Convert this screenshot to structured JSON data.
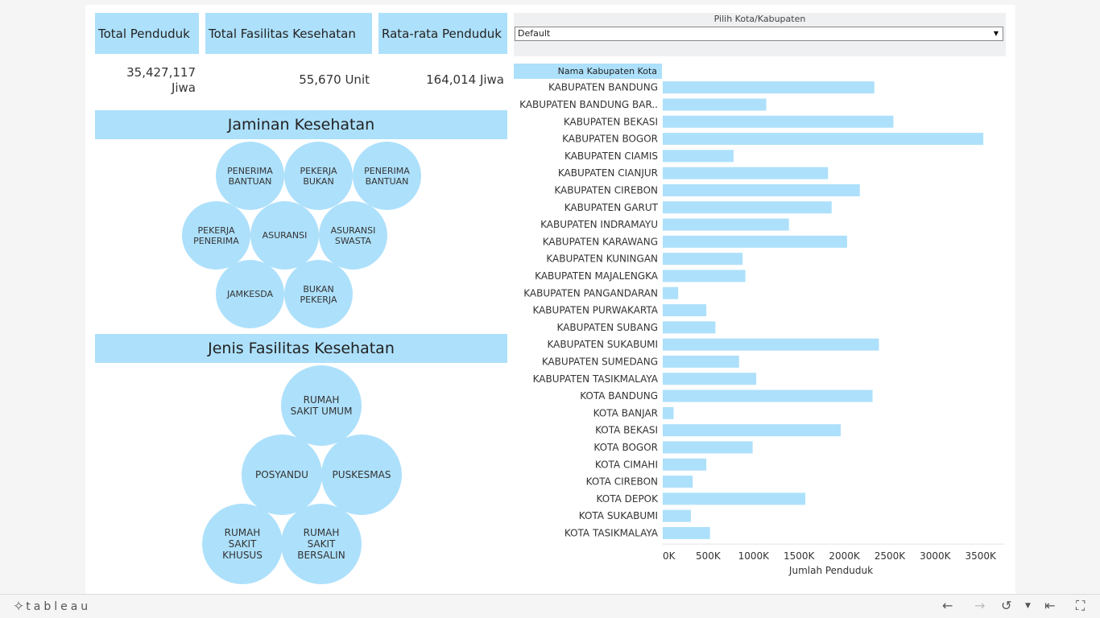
{
  "kpis": [
    {
      "header": "Total Penduduk",
      "value_line1": "35,427,117",
      "value_line2": "Jiwa"
    },
    {
      "header": "Total Fasilitas Kesehatan",
      "value": "55,670 Unit"
    },
    {
      "header": "Rata-rata Penduduk",
      "value": "164,014 Jiwa"
    }
  ],
  "jaminan": {
    "title": "Jaminan Kesehatan",
    "bubbles": [
      "PENERIMA\nBANTUAN",
      "PEKERJA\nBUKAN",
      "PENERIMA\nBANTUAN",
      "PEKERJA\nPENERIMA",
      "ASURANSI",
      "ASURANSI\nSWASTA",
      "JAMKESDA",
      "BUKAN\nPEKERJA"
    ]
  },
  "fasilitas": {
    "title": "Jenis Fasilitas Kesehatan",
    "bubbles": [
      "RUMAH\nSAKIT UMUM",
      "POSYANDU",
      "PUSKESMAS",
      "RUMAH\nSAKIT\nKHUSUS",
      "RUMAH\nSAKIT\nBERSALIN"
    ]
  },
  "filter": {
    "label": "Pilih Kota/Kabupaten",
    "selected": "Default"
  },
  "colors": {
    "accent": "#ade0fb",
    "bar": "#ade0fb"
  },
  "chart_data": {
    "type": "bar",
    "orientation": "horizontal",
    "row_header": "Nama Kabupaten Kota",
    "xlabel": "Jumlah Penduduk",
    "xlim": [
      0,
      3600000
    ],
    "xticks": [
      0,
      500000,
      1000000,
      1500000,
      2000000,
      2500000,
      3000000,
      3500000
    ],
    "xtick_labels": [
      "0K",
      "500K",
      "1000K",
      "1500K",
      "2000K",
      "2500K",
      "3000K",
      "3500K"
    ],
    "categories": [
      "KABUPATEN BANDUNG",
      "KABUPATEN BANDUNG BAR..",
      "KABUPATEN BEKASI",
      "KABUPATEN BOGOR",
      "KABUPATEN CIAMIS",
      "KABUPATEN CIANJUR",
      "KABUPATEN CIREBON",
      "KABUPATEN GARUT",
      "KABUPATEN INDRAMAYU",
      "KABUPATEN KARAWANG",
      "KABUPATEN KUNINGAN",
      "KABUPATEN MAJALENGKA",
      "KABUPATEN PANGANDARAN",
      "KABUPATEN PURWAKARTA",
      "KABUPATEN SUBANG",
      "KABUPATEN SUKABUMI",
      "KABUPATEN SUMEDANG",
      "KABUPATEN TASIKMALAYA",
      "KOTA BANDUNG",
      "KOTA BANJAR",
      "KOTA BEKASI",
      "KOTA BOGOR",
      "KOTA CIMAHI",
      "KOTA CIREBON",
      "KOTA DEPOK",
      "KOTA SUKABUMI",
      "KOTA TASIKMALAYA"
    ],
    "values": [
      2330000,
      1140000,
      2540000,
      3530000,
      780000,
      1820000,
      2170000,
      1860000,
      1390000,
      2030000,
      880000,
      910000,
      170000,
      480000,
      580000,
      2380000,
      840000,
      1030000,
      2310000,
      120000,
      1960000,
      990000,
      480000,
      330000,
      1570000,
      310000,
      520000
    ]
  },
  "footer": {
    "logo": "tableau"
  }
}
